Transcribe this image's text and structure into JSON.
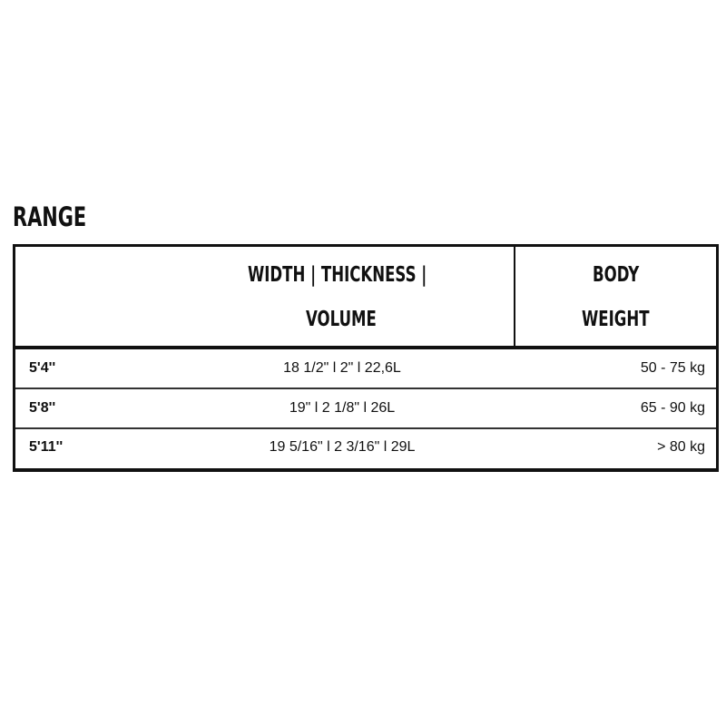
{
  "title": "RANGE",
  "table": {
    "headers": {
      "main_line1": "WIDTH | THICKNESS |",
      "main_line2": "VOLUME",
      "weight_line1": "BODY",
      "weight_line2": "WEIGHT"
    },
    "rows": [
      {
        "size": "5'4''",
        "dims": "18 1/2\" l 2\"  l 22,6L",
        "weight": "50 - 75 kg"
      },
      {
        "size": "5'8''",
        "dims": "19\" l 2 1/8\" l 26L",
        "weight": "65 - 90 kg"
      },
      {
        "size": "5'11''",
        "dims": "19 5/16\" l 2 3/16\"  l 29L",
        "weight": "> 80 kg"
      }
    ]
  }
}
